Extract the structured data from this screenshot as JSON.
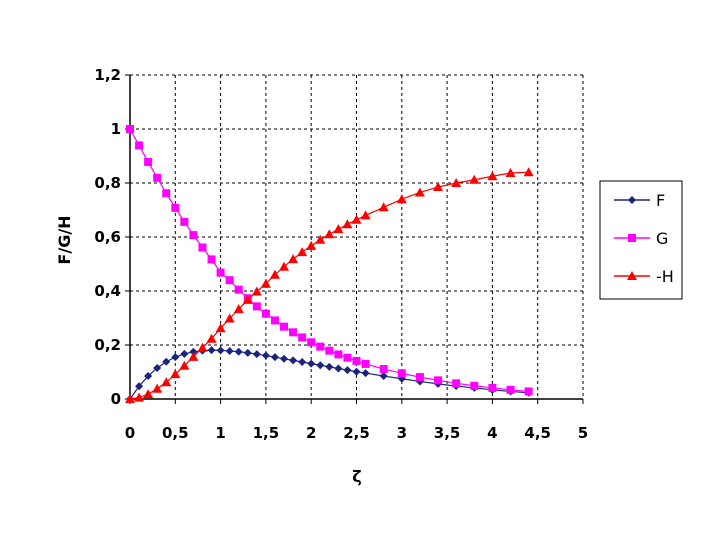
{
  "chart_data": {
    "type": "line",
    "xlabel": "ζ",
    "ylabel": "F/G/H",
    "xlim": [
      0,
      5
    ],
    "ylim": [
      0,
      1.2
    ],
    "x_ticks": [
      "0",
      "0,5",
      "1",
      "1,5",
      "2",
      "2,5",
      "3",
      "3,5",
      "4",
      "4,5",
      "5"
    ],
    "y_ticks": [
      "0",
      "0,2",
      "0,4",
      "0,6",
      "0,8",
      "1",
      "1,2"
    ],
    "grid": true,
    "legend_position": "right",
    "series": [
      {
        "name": "F",
        "color": "#1a237e",
        "marker": "diamond",
        "x": [
          0,
          0.1,
          0.2,
          0.3,
          0.4,
          0.5,
          0.6,
          0.7,
          0.8,
          0.9,
          1.0,
          1.1,
          1.2,
          1.3,
          1.4,
          1.5,
          1.6,
          1.7,
          1.8,
          1.9,
          2.0,
          2.1,
          2.2,
          2.3,
          2.4,
          2.5,
          2.6,
          2.8,
          3.0,
          3.2,
          3.4,
          3.6,
          3.8,
          4.0,
          4.2,
          4.4
        ],
        "values": [
          0,
          0.047,
          0.085,
          0.115,
          0.138,
          0.155,
          0.167,
          0.175,
          0.179,
          0.181,
          0.18,
          0.178,
          0.175,
          0.171,
          0.166,
          0.161,
          0.155,
          0.149,
          0.143,
          0.137,
          0.131,
          0.125,
          0.119,
          0.113,
          0.107,
          0.101,
          0.096,
          0.085,
          0.075,
          0.065,
          0.056,
          0.048,
          0.041,
          0.034,
          0.028,
          0.023
        ]
      },
      {
        "name": "G",
        "color": "#ff00ff",
        "marker": "square",
        "x": [
          0,
          0.1,
          0.2,
          0.3,
          0.4,
          0.5,
          0.6,
          0.7,
          0.8,
          0.9,
          1.0,
          1.1,
          1.2,
          1.3,
          1.4,
          1.5,
          1.6,
          1.7,
          1.8,
          1.9,
          2.0,
          2.1,
          2.2,
          2.3,
          2.4,
          2.5,
          2.6,
          2.8,
          3.0,
          3.2,
          3.4,
          3.6,
          3.8,
          4.0,
          4.2,
          4.4
        ],
        "values": [
          1.0,
          0.939,
          0.878,
          0.819,
          0.762,
          0.708,
          0.656,
          0.607,
          0.561,
          0.517,
          0.468,
          0.44,
          0.405,
          0.373,
          0.343,
          0.316,
          0.291,
          0.268,
          0.247,
          0.228,
          0.21,
          0.194,
          0.179,
          0.165,
          0.153,
          0.141,
          0.13,
          0.111,
          0.095,
          0.081,
          0.069,
          0.058,
          0.049,
          0.041,
          0.034,
          0.028
        ]
      },
      {
        "name": "-H",
        "color": "#ff0000",
        "marker": "triangle",
        "x": [
          0,
          0.1,
          0.2,
          0.3,
          0.4,
          0.5,
          0.6,
          0.7,
          0.8,
          0.9,
          1.0,
          1.1,
          1.2,
          1.3,
          1.4,
          1.5,
          1.6,
          1.7,
          1.8,
          1.9,
          2.0,
          2.1,
          2.2,
          2.3,
          2.4,
          2.5,
          2.6,
          2.8,
          3.0,
          3.2,
          3.4,
          3.6,
          3.8,
          4.0,
          4.2,
          4.4
        ],
        "values": [
          0,
          0.005,
          0.018,
          0.038,
          0.062,
          0.092,
          0.123,
          0.156,
          0.19,
          0.223,
          0.262,
          0.298,
          0.333,
          0.367,
          0.398,
          0.427,
          0.46,
          0.49,
          0.518,
          0.544,
          0.567,
          0.59,
          0.61,
          0.629,
          0.647,
          0.664,
          0.68,
          0.71,
          0.74,
          0.765,
          0.785,
          0.8,
          0.812,
          0.825,
          0.837,
          0.84
        ]
      }
    ]
  }
}
